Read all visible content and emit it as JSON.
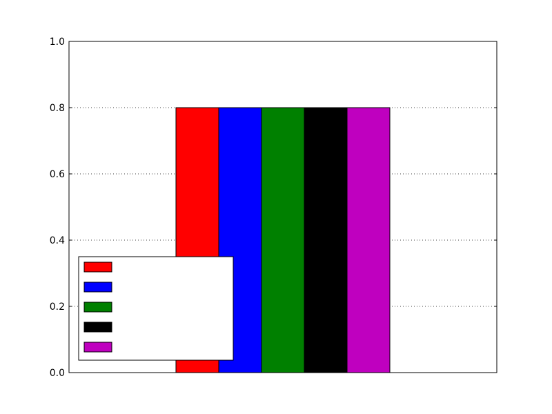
{
  "chart_data": {
    "type": "bar",
    "title": "",
    "xlabel": "",
    "ylabel": "",
    "ylim": [
      0,
      1.0
    ],
    "yticks": [
      "0.0",
      "0.2",
      "0.4",
      "0.6",
      "0.8",
      "1.0"
    ],
    "grid": "horizontal-dotted",
    "legend_placement": "lower-left",
    "series": [
      {
        "values": [
          0.8
        ],
        "color": "#ff0000"
      },
      {
        "values": [
          0.8
        ],
        "color": "#0000ff"
      },
      {
        "values": [
          0.8
        ],
        "color": "#008000"
      },
      {
        "values": [
          0.8
        ],
        "color": "#000000"
      },
      {
        "values": [
          0.8
        ],
        "color": "#bf00bf"
      }
    ]
  }
}
